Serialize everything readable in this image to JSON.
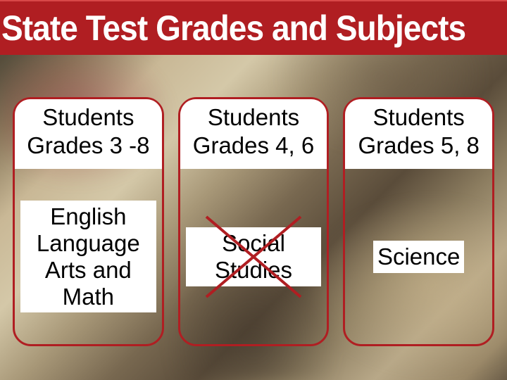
{
  "title": "State Test Grades and Subjects",
  "title_fontsize": 50,
  "title_bg": "#b01e22",
  "title_border_top": "#d84848",
  "title_color": "#ffffff",
  "card_border_colors": [
    "#b01e22",
    "#b01e22",
    "#b01e22"
  ],
  "card_border_width": 3,
  "card_border_radius": 26,
  "header_bg": "#ffffff",
  "header_text_color": "#000000",
  "header_fontsize": 33,
  "body_text_color": "#000000",
  "body_fontsize": 33,
  "cards": [
    {
      "header_line1": "Students",
      "header_line2": "Grades 3 -8",
      "subject": "English Language Arts and Math",
      "crossed_out": false
    },
    {
      "header_line1": "Students",
      "header_line2": "Grades 4, 6",
      "subject": "Social Studies",
      "crossed_out": true
    },
    {
      "header_line1": "Students",
      "header_line2": "Grades 5, 8",
      "subject": "Science",
      "crossed_out": false
    }
  ],
  "cross": {
    "stroke": "#b01e22",
    "stroke_width": 4,
    "width": 150,
    "height": 130
  }
}
